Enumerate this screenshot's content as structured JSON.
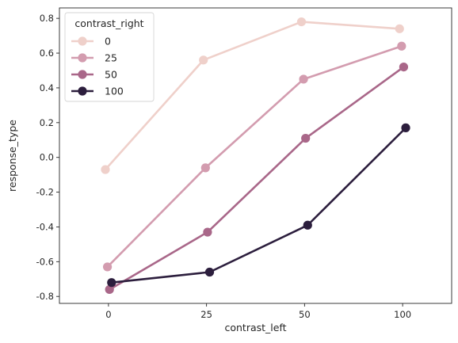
{
  "chart_data": {
    "type": "line",
    "title": "",
    "xlabel": "contrast_left",
    "ylabel": "response_type",
    "categories": [
      "0",
      "25",
      "50",
      "100"
    ],
    "ylim": [
      -0.84,
      0.86
    ],
    "yticks": [
      "-0.8",
      "-0.6",
      "-0.4",
      "-0.2",
      "0.0",
      "0.2",
      "0.4",
      "0.6",
      "0.8"
    ],
    "ytick_values": [
      -0.8,
      -0.6,
      -0.4,
      -0.2,
      0.0,
      0.2,
      0.4,
      0.6,
      0.8
    ],
    "grid": false,
    "legend": {
      "title": "contrast_right",
      "placement": "top-left"
    },
    "series": [
      {
        "name": "0",
        "color": "#efd0ca",
        "values": [
          -0.07,
          0.56,
          0.78,
          0.74
        ]
      },
      {
        "name": "25",
        "color": "#d39caf",
        "values": [
          -0.63,
          -0.06,
          0.45,
          0.64
        ]
      },
      {
        "name": "50",
        "color": "#a96789",
        "values": [
          -0.76,
          -0.43,
          0.11,
          0.52
        ]
      },
      {
        "name": "100",
        "color": "#2c1e3d",
        "values": [
          -0.72,
          -0.66,
          -0.39,
          0.17
        ]
      }
    ]
  }
}
